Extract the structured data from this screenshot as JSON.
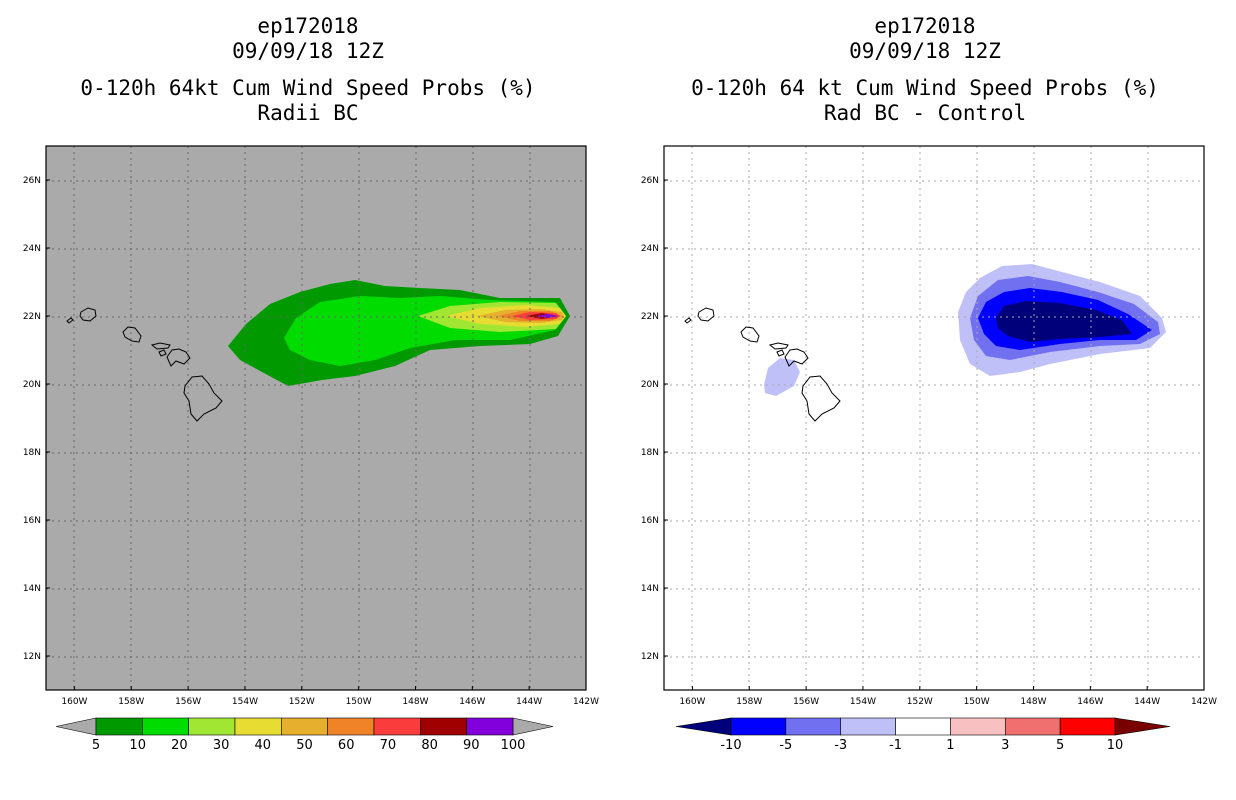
{
  "chart_data": [
    {
      "type": "heatmap",
      "title_lines": [
        "ep172018",
        "09/09/18 12Z"
      ],
      "subtitle_lines": [
        "0-120h 64kt Cum Wind Speed Probs (%)",
        "Radii BC"
      ],
      "background_color": "#aaaaaa",
      "grid": true,
      "xlim": [
        -161,
        -142
      ],
      "ylim": [
        11,
        27
      ],
      "x_ticks": [
        -160,
        -158,
        -156,
        -154,
        -152,
        -150,
        -148,
        -146,
        -144,
        -142
      ],
      "x_tick_labels": [
        "160W",
        "158W",
        "156W",
        "154W",
        "152W",
        "150W",
        "148W",
        "146W",
        "144W",
        "142W"
      ],
      "y_ticks": [
        12,
        14,
        16,
        18,
        20,
        22,
        24,
        26
      ],
      "y_tick_labels": [
        "12N",
        "14N",
        "16N",
        "18N",
        "20N",
        "22N",
        "24N",
        "26N"
      ],
      "contour_levels": [
        5,
        10,
        20,
        30,
        40,
        50,
        60,
        70,
        80,
        90,
        100
      ],
      "colorbar": {
        "labels": [
          "5",
          "10",
          "20",
          "30",
          "40",
          "50",
          "60",
          "70",
          "80",
          "90",
          "100"
        ],
        "colors": [
          "#009a00",
          "#00dc00",
          "#a0e632",
          "#e6dc32",
          "#e6af2d",
          "#f08228",
          "#fa3c3c",
          "#a00000",
          "#8200dc"
        ],
        "under_color": "#aaaaaa",
        "over_color": "#aaaaaa"
      },
      "field_description": "probability swath centered near 21.8N extending from 155W to 143W, maximum near 143.5W"
    },
    {
      "type": "heatmap",
      "title_lines": [
        "ep172018",
        "09/09/18 12Z"
      ],
      "subtitle_lines": [
        "0-120h 64 kt Cum Wind Speed Probs (%)",
        "Rad BC - Control"
      ],
      "background_color": "#ffffff",
      "grid": true,
      "xlim": [
        -161,
        -142
      ],
      "ylim": [
        11,
        27
      ],
      "x_ticks": [
        -160,
        -158,
        -156,
        -154,
        -152,
        -150,
        -148,
        -146,
        -144,
        -142
      ],
      "x_tick_labels": [
        "160W",
        "158W",
        "156W",
        "154W",
        "152W",
        "150W",
        "148W",
        "146W",
        "144W",
        "142W"
      ],
      "y_ticks": [
        12,
        14,
        16,
        18,
        20,
        22,
        24,
        26
      ],
      "y_tick_labels": [
        "12N",
        "14N",
        "16N",
        "18N",
        "20N",
        "22N",
        "24N",
        "26N"
      ],
      "contour_levels": [
        -10,
        -5,
        -3,
        -1,
        1,
        3,
        5,
        10
      ],
      "colorbar": {
        "labels": [
          "-10",
          "-5",
          "-3",
          "-1",
          "1",
          "3",
          "5",
          "10"
        ],
        "colors": [
          "#0000ff",
          "#7070f0",
          "#c0c0f8",
          "#ffffff",
          "#f8c0c0",
          "#f07070",
          "#ff0000"
        ],
        "under_color": "#00007a",
        "over_color": "#7a0000"
      },
      "field_description": "negative difference area centered near 21.8N 147.5W, small weak negative area near 20.5N 156.5W"
    }
  ]
}
